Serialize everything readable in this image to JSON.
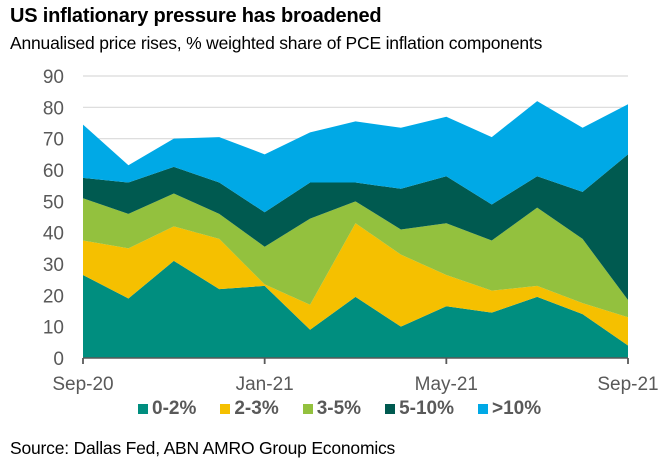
{
  "header": {
    "title": "US inflationary pressure has broadened",
    "subtitle": "Annualised price rises, % weighted share of PCE inflation components"
  },
  "footer": {
    "source": "Source: Dallas Fed, ABN AMRO Group Economics"
  },
  "chart_data": {
    "type": "area",
    "stacked": true,
    "title": "US inflationary pressure has broadened",
    "subtitle": "Annualised price rises, % weighted share of PCE inflation components",
    "xlabel": "",
    "ylabel": "",
    "x": [
      "Sep-20",
      "Oct-20",
      "Nov-20",
      "Dec-20",
      "Jan-21",
      "Feb-21",
      "Mar-21",
      "Apr-21",
      "May-21",
      "Jun-21",
      "Jul-21",
      "Aug-21",
      "Sep-21"
    ],
    "x_tick_labels": [
      "Sep-20",
      "Jan-21",
      "May-21",
      "Sep-21"
    ],
    "x_tick_indices": [
      0,
      4,
      8,
      12
    ],
    "ylim": [
      0,
      90
    ],
    "y_ticks": [
      0,
      10,
      20,
      30,
      40,
      50,
      60,
      70,
      80,
      90
    ],
    "grid": true,
    "legend_position": "bottom",
    "series": [
      {
        "name": "0-2%",
        "color": "#008e7f",
        "values": [
          26.5,
          19,
          31,
          22,
          23,
          9,
          19.5,
          10,
          16.5,
          14.5,
          19.5,
          14,
          4
        ]
      },
      {
        "name": "2-3%",
        "color": "#f5c000",
        "values": [
          11,
          16,
          11,
          16,
          0.5,
          8,
          23.5,
          23,
          10,
          7,
          3.5,
          3.5,
          9
        ]
      },
      {
        "name": "3-5%",
        "color": "#93c13e",
        "values": [
          13.5,
          11,
          10.5,
          8,
          12,
          27.5,
          7,
          8,
          16.5,
          16,
          25,
          20.5,
          5.5
        ]
      },
      {
        "name": "5-10%",
        "color": "#005a50",
        "values": [
          6.5,
          10,
          8.5,
          10,
          11,
          11.5,
          6,
          13,
          15,
          11.5,
          10,
          15,
          46.5
        ]
      },
      {
        "name": ">10%",
        "color": "#00a9e6",
        "values": [
          17,
          5.5,
          9,
          14.5,
          18.5,
          16,
          19.5,
          19.5,
          19,
          21.5,
          24,
          20.5,
          16
        ]
      }
    ]
  }
}
